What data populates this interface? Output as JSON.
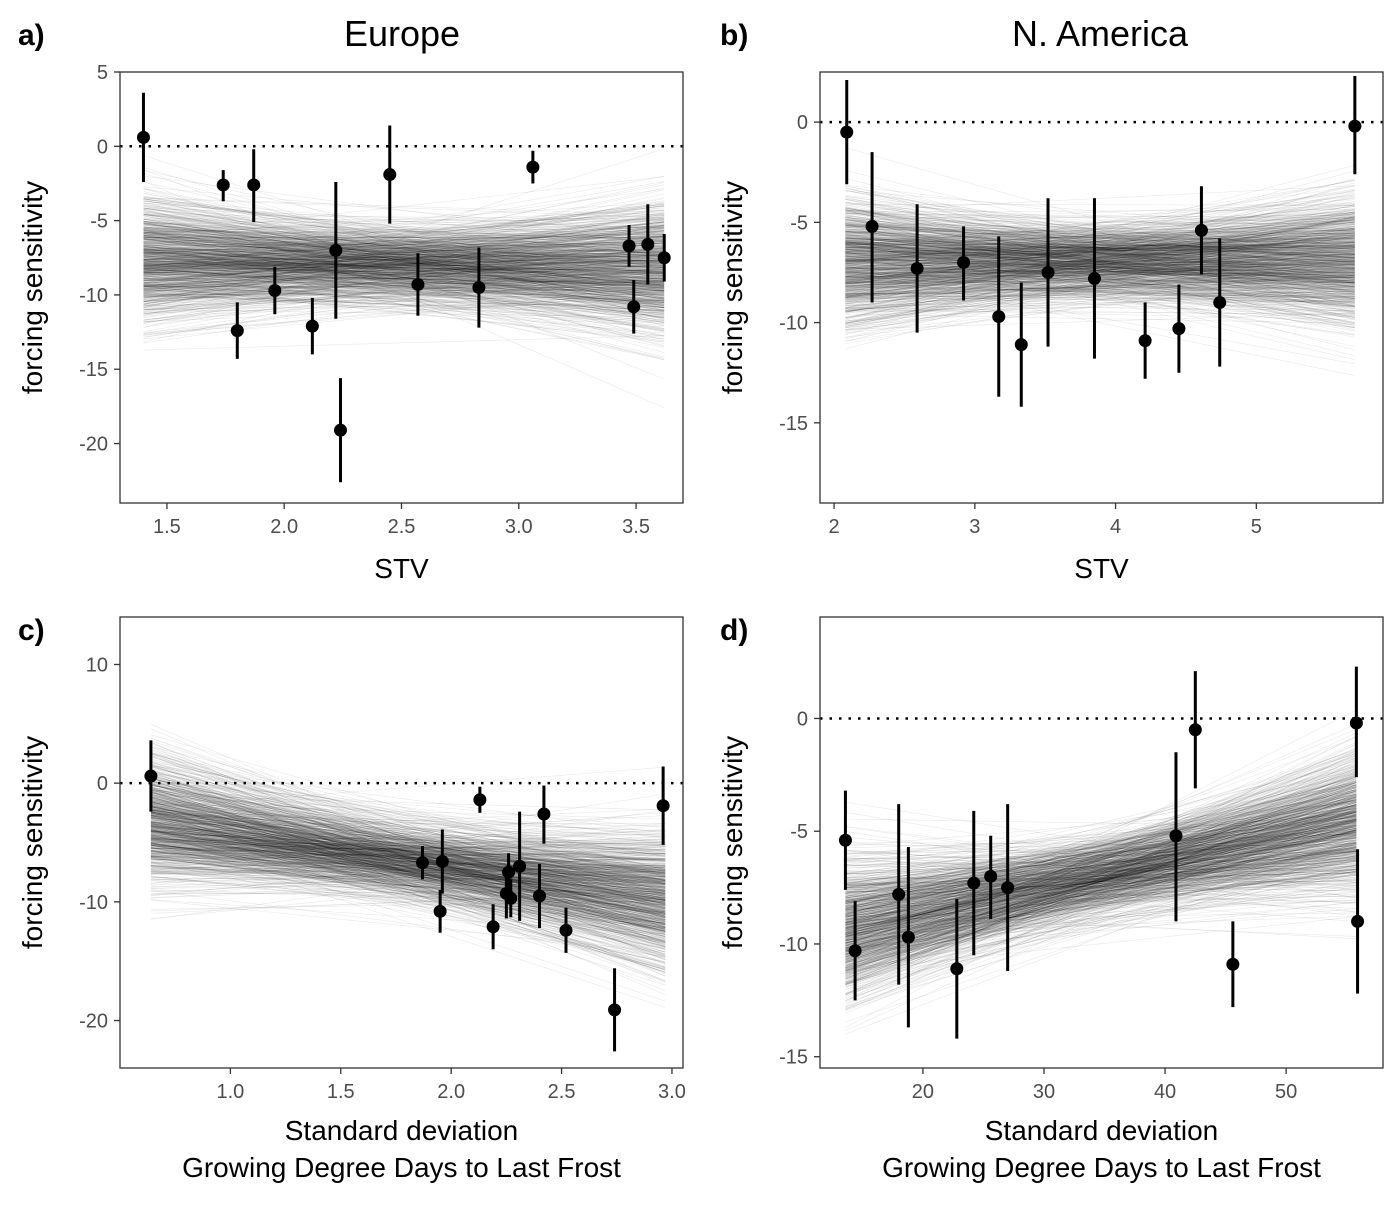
{
  "figure": {
    "ylabel": "forcing sensitivity"
  },
  "chart_data": [
    {
      "type": "scatter",
      "tag": "a)",
      "title": "Europe",
      "xlabel": "STV",
      "xlabel2": "",
      "ylabel": "forcing sensitivity",
      "xlim": [
        1.3,
        3.7
      ],
      "ylim": [
        -24,
        5
      ],
      "xticks": [
        1.5,
        2.0,
        2.5,
        3.0,
        3.5
      ],
      "xtick_labels": [
        "1.5",
        "2.0",
        "2.5",
        "3.0",
        "3.5"
      ],
      "yticks": [
        5,
        0,
        -5,
        -10,
        -15,
        -20
      ],
      "ytick_labels": [
        "5",
        "0",
        "-5",
        "-10",
        "-15",
        "-20"
      ],
      "reference_line": 0,
      "posterior_lines": {
        "x_range": [
          1.4,
          3.62
        ],
        "center_intercept": -7.2,
        "center_slope": -0.3,
        "color": "#000000"
      },
      "points": [
        {
          "x": 1.4,
          "y": 0.6,
          "ylow": -2.4,
          "yhigh": 3.6
        },
        {
          "x": 1.74,
          "y": -2.6,
          "ylow": -3.7,
          "yhigh": -1.6
        },
        {
          "x": 1.8,
          "y": -12.4,
          "ylow": -14.3,
          "yhigh": -10.5
        },
        {
          "x": 1.87,
          "y": -2.6,
          "ylow": -5.1,
          "yhigh": -0.2
        },
        {
          "x": 1.96,
          "y": -9.7,
          "ylow": -11.3,
          "yhigh": -8.1
        },
        {
          "x": 2.12,
          "y": -12.1,
          "ylow": -14.0,
          "yhigh": -10.2
        },
        {
          "x": 2.22,
          "y": -7.0,
          "ylow": -11.6,
          "yhigh": -2.4
        },
        {
          "x": 2.24,
          "y": -19.1,
          "ylow": -22.6,
          "yhigh": -15.6
        },
        {
          "x": 2.45,
          "y": -1.9,
          "ylow": -5.2,
          "yhigh": 1.4
        },
        {
          "x": 2.57,
          "y": -9.3,
          "ylow": -11.4,
          "yhigh": -7.2
        },
        {
          "x": 2.83,
          "y": -9.5,
          "ylow": -12.2,
          "yhigh": -6.8
        },
        {
          "x": 3.06,
          "y": -1.4,
          "ylow": -2.5,
          "yhigh": -0.3
        },
        {
          "x": 3.47,
          "y": -6.7,
          "ylow": -8.1,
          "yhigh": -5.3
        },
        {
          "x": 3.49,
          "y": -10.8,
          "ylow": -12.6,
          "yhigh": -9.0
        },
        {
          "x": 3.55,
          "y": -6.6,
          "ylow": -9.3,
          "yhigh": -3.9
        },
        {
          "x": 3.62,
          "y": -7.5,
          "ylow": -9.1,
          "yhigh": -5.9
        }
      ]
    },
    {
      "type": "scatter",
      "tag": "b)",
      "title": "N. America",
      "xlabel": "STV",
      "xlabel2": "",
      "ylabel": "forcing sensitivity",
      "xlim": [
        1.9,
        5.9
      ],
      "ylim": [
        -19,
        2.5
      ],
      "xticks": [
        2,
        3,
        4,
        5
      ],
      "xtick_labels": [
        "2",
        "3",
        "4",
        "5"
      ],
      "yticks": [
        0,
        -5,
        -10,
        -15
      ],
      "ytick_labels": [
        "0",
        "-5",
        "-10",
        "-15"
      ],
      "reference_line": 0,
      "posterior_lines": {
        "x_range": [
          2.08,
          5.7
        ],
        "center_intercept": -7.1,
        "center_slope": 0.05,
        "color": "#000000"
      },
      "points": [
        {
          "x": 2.09,
          "y": -0.5,
          "ylow": -3.1,
          "yhigh": 2.1
        },
        {
          "x": 2.27,
          "y": -5.2,
          "ylow": -9.0,
          "yhigh": -1.5
        },
        {
          "x": 2.59,
          "y": -7.3,
          "ylow": -10.5,
          "yhigh": -4.1
        },
        {
          "x": 2.92,
          "y": -7.0,
          "ylow": -8.9,
          "yhigh": -5.2
        },
        {
          "x": 3.17,
          "y": -9.7,
          "ylow": -13.7,
          "yhigh": -5.7
        },
        {
          "x": 3.33,
          "y": -11.1,
          "ylow": -14.2,
          "yhigh": -8.0
        },
        {
          "x": 3.52,
          "y": -7.5,
          "ylow": -11.2,
          "yhigh": -3.8
        },
        {
          "x": 3.85,
          "y": -7.8,
          "ylow": -11.8,
          "yhigh": -3.8
        },
        {
          "x": 4.21,
          "y": -10.9,
          "ylow": -12.8,
          "yhigh": -9.0
        },
        {
          "x": 4.45,
          "y": -10.3,
          "ylow": -12.5,
          "yhigh": -8.1
        },
        {
          "x": 4.61,
          "y": -5.4,
          "ylow": -7.6,
          "yhigh": -3.2
        },
        {
          "x": 4.74,
          "y": -9.0,
          "ylow": -12.2,
          "yhigh": -5.8
        },
        {
          "x": 5.7,
          "y": -0.2,
          "ylow": -2.6,
          "yhigh": 2.3
        }
      ]
    },
    {
      "type": "scatter",
      "tag": "c)",
      "title": "",
      "xlabel": "Standard deviation",
      "xlabel2": "Growing Degree Days to Last Frost",
      "ylabel": "forcing sensitivity",
      "xlim": [
        0.5,
        3.05
      ],
      "ylim": [
        -24,
        14
      ],
      "xticks": [
        1.0,
        1.5,
        2.0,
        2.5,
        3.0
      ],
      "xtick_labels": [
        "1.0",
        "1.5",
        "2.0",
        "2.5",
        "3.0"
      ],
      "yticks": [
        10,
        0,
        -10,
        -20
      ],
      "ytick_labels": [
        "10",
        "0",
        "-10",
        "-20"
      ],
      "reference_line": 0,
      "posterior_lines": {
        "x_range": [
          0.64,
          2.97
        ],
        "center_intercept": -1.5,
        "center_slope": -2.8,
        "color": "#000000"
      },
      "points": [
        {
          "x": 0.64,
          "y": 0.6,
          "ylow": -2.4,
          "yhigh": 3.6
        },
        {
          "x": 1.87,
          "y": -6.7,
          "ylow": -8.1,
          "yhigh": -5.3
        },
        {
          "x": 1.95,
          "y": -10.8,
          "ylow": -12.6,
          "yhigh": -9.0
        },
        {
          "x": 1.96,
          "y": -6.6,
          "ylow": -9.3,
          "yhigh": -3.9
        },
        {
          "x": 2.13,
          "y": -1.4,
          "ylow": -2.5,
          "yhigh": -0.3
        },
        {
          "x": 2.19,
          "y": -12.1,
          "ylow": -14.0,
          "yhigh": -10.2
        },
        {
          "x": 2.25,
          "y": -9.3,
          "ylow": -11.4,
          "yhigh": -7.2
        },
        {
          "x": 2.26,
          "y": -7.5,
          "ylow": -9.1,
          "yhigh": -5.9
        },
        {
          "x": 2.27,
          "y": -9.7,
          "ylow": -11.3,
          "yhigh": -8.1
        },
        {
          "x": 2.31,
          "y": -7.0,
          "ylow": -11.6,
          "yhigh": -2.4
        },
        {
          "x": 2.4,
          "y": -9.5,
          "ylow": -12.2,
          "yhigh": -6.8
        },
        {
          "x": 2.42,
          "y": -2.6,
          "ylow": -5.1,
          "yhigh": -0.2
        },
        {
          "x": 2.52,
          "y": -12.4,
          "ylow": -14.3,
          "yhigh": -10.5
        },
        {
          "x": 2.74,
          "y": -19.1,
          "ylow": -22.6,
          "yhigh": -15.6
        },
        {
          "x": 2.96,
          "y": -1.9,
          "ylow": -5.2,
          "yhigh": 1.4
        }
      ]
    },
    {
      "type": "scatter",
      "tag": "d)",
      "title": "",
      "xlabel": "Standard deviation",
      "xlabel2": "Growing Degree Days to Last Frost",
      "ylabel": "forcing sensitivity",
      "xlim": [
        11.5,
        58
      ],
      "ylim": [
        -15.5,
        4.5
      ],
      "xticks": [
        20,
        30,
        40,
        50
      ],
      "xtick_labels": [
        "20",
        "30",
        "40",
        "50"
      ],
      "yticks": [
        0,
        -5,
        -10,
        -15
      ],
      "ytick_labels": [
        "0",
        "-5",
        "-10",
        "-15"
      ],
      "reference_line": 0,
      "posterior_lines": {
        "x_range": [
          13.6,
          55.8
        ],
        "center_intercept": -10.8,
        "center_slope": 0.11,
        "color": "#000000"
      },
      "points": [
        {
          "x": 13.6,
          "y": -5.4,
          "ylow": -7.6,
          "yhigh": -3.2
        },
        {
          "x": 14.4,
          "y": -10.3,
          "ylow": -12.5,
          "yhigh": -8.1
        },
        {
          "x": 18.0,
          "y": -7.8,
          "ylow": -11.8,
          "yhigh": -3.8
        },
        {
          "x": 18.8,
          "y": -9.7,
          "ylow": -13.7,
          "yhigh": -5.7
        },
        {
          "x": 22.8,
          "y": -11.1,
          "ylow": -14.2,
          "yhigh": -8.0
        },
        {
          "x": 24.2,
          "y": -7.3,
          "ylow": -10.5,
          "yhigh": -4.1
        },
        {
          "x": 25.6,
          "y": -7.0,
          "ylow": -8.9,
          "yhigh": -5.2
        },
        {
          "x": 27.0,
          "y": -7.5,
          "ylow": -11.2,
          "yhigh": -3.8
        },
        {
          "x": 40.9,
          "y": -5.2,
          "ylow": -9.0,
          "yhigh": -1.5
        },
        {
          "x": 42.5,
          "y": -0.5,
          "ylow": -3.1,
          "yhigh": 2.1
        },
        {
          "x": 45.6,
          "y": -10.9,
          "ylow": -12.8,
          "yhigh": -9.0
        },
        {
          "x": 55.8,
          "y": -0.2,
          "ylow": -2.6,
          "yhigh": 2.3
        },
        {
          "x": 55.9,
          "y": -9.0,
          "ylow": -12.2,
          "yhigh": -5.8
        }
      ]
    }
  ]
}
